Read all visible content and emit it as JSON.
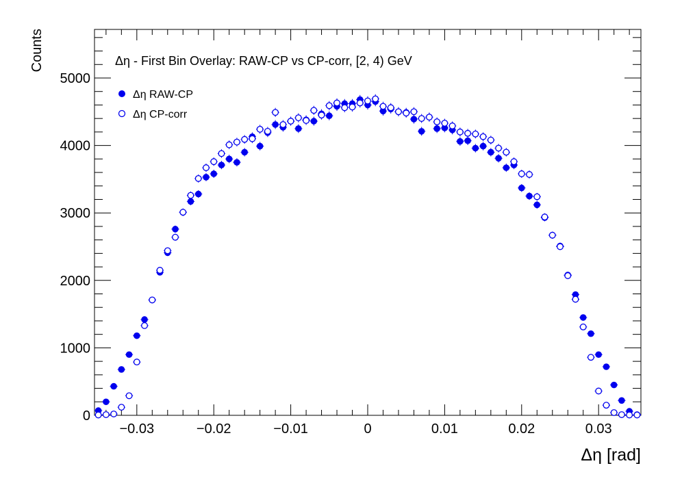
{
  "chart_data": {
    "type": "scatter",
    "title": "Δη  -  First Bin Overlay: RAW-CP vs CP-corr, [2, 4) GeV",
    "xlabel": "Δη  [rad]",
    "ylabel": "Counts",
    "xlim": [
      -0.0355,
      0.0355
    ],
    "ylim": [
      0,
      5720
    ],
    "x_ticks": [
      -0.03,
      -0.02,
      -0.01,
      0,
      0.01,
      0.02,
      0.03
    ],
    "x_tick_labels": [
      "−0.03",
      "−0.02",
      "−0.01",
      "0",
      "0.01",
      "0.02",
      "0.03"
    ],
    "y_ticks": [
      0,
      1000,
      2000,
      3000,
      4000,
      5000
    ],
    "y_tick_labels": [
      "0",
      "1000",
      "2000",
      "3000",
      "4000",
      "5000"
    ],
    "bin_width": 0.001,
    "grid": false,
    "legend_position": "top-left",
    "series": [
      {
        "name": "Δη RAW-CP",
        "marker": "filled-circle",
        "color": "#0000ee",
        "x": [
          -0.035,
          -0.034,
          -0.033,
          -0.032,
          -0.031,
          -0.03,
          -0.029,
          -0.028,
          -0.027,
          -0.026,
          -0.025,
          -0.024,
          -0.023,
          -0.022,
          -0.021,
          -0.02,
          -0.019,
          -0.018,
          -0.017,
          -0.016,
          -0.015,
          -0.014,
          -0.013,
          -0.012,
          -0.011,
          -0.01,
          -0.009,
          -0.008,
          -0.007,
          -0.006,
          -0.005,
          -0.004,
          -0.003,
          -0.002,
          -0.001,
          0.0,
          0.001,
          0.002,
          0.003,
          0.004,
          0.005,
          0.006,
          0.007,
          0.008,
          0.009,
          0.01,
          0.011,
          0.012,
          0.013,
          0.014,
          0.015,
          0.016,
          0.017,
          0.018,
          0.019,
          0.02,
          0.021,
          0.022,
          0.023,
          0.024,
          0.025,
          0.026,
          0.027,
          0.028,
          0.029,
          0.03,
          0.031,
          0.032,
          0.033,
          0.034,
          0.035
        ],
        "y": [
          70,
          200,
          430,
          680,
          900,
          1180,
          1420,
          1710,
          2120,
          2410,
          2760,
          3010,
          3170,
          3280,
          3530,
          3580,
          3710,
          3800,
          3750,
          3900,
          4130,
          3990,
          4190,
          4310,
          4270,
          4360,
          4250,
          4380,
          4360,
          4470,
          4440,
          4580,
          4620,
          4620,
          4680,
          4600,
          4650,
          4510,
          4540,
          4500,
          4490,
          4390,
          4210,
          4420,
          4250,
          4260,
          4230,
          4060,
          4070,
          3960,
          3990,
          3900,
          3810,
          3670,
          3710,
          3370,
          3250,
          3120,
          2930,
          2670,
          2510,
          2080,
          1790,
          1450,
          1210,
          900,
          720,
          450,
          220,
          60,
          10
        ],
        "yerr": [
          12,
          15,
          20,
          26,
          30,
          34,
          38,
          41,
          46,
          49,
          52,
          55,
          56,
          57,
          59,
          60,
          61,
          62,
          61,
          62,
          64,
          63,
          65,
          66,
          65,
          66,
          65,
          66,
          66,
          67,
          66,
          68,
          68,
          68,
          68,
          68,
          68,
          67,
          67,
          67,
          67,
          66,
          65,
          66,
          65,
          65,
          65,
          64,
          64,
          63,
          63,
          62,
          62,
          61,
          61,
          58,
          57,
          56,
          54,
          52,
          50,
          46,
          42,
          38,
          35,
          30,
          27,
          21,
          15,
          10,
          5
        ]
      },
      {
        "name": "Δη CP-corr",
        "marker": "open-circle",
        "color": "#0000ee",
        "x": [
          -0.035,
          -0.034,
          -0.033,
          -0.032,
          -0.031,
          -0.03,
          -0.029,
          -0.028,
          -0.027,
          -0.026,
          -0.025,
          -0.024,
          -0.023,
          -0.022,
          -0.021,
          -0.02,
          -0.019,
          -0.018,
          -0.017,
          -0.016,
          -0.015,
          -0.014,
          -0.013,
          -0.012,
          -0.011,
          -0.01,
          -0.009,
          -0.008,
          -0.007,
          -0.006,
          -0.005,
          -0.004,
          -0.003,
          -0.002,
          -0.001,
          0.0,
          0.001,
          0.002,
          0.003,
          0.004,
          0.005,
          0.006,
          0.007,
          0.008,
          0.009,
          0.01,
          0.011,
          0.012,
          0.013,
          0.014,
          0.015,
          0.016,
          0.017,
          0.018,
          0.019,
          0.02,
          0.021,
          0.022,
          0.023,
          0.024,
          0.025,
          0.026,
          0.027,
          0.028,
          0.029,
          0.03,
          0.031,
          0.032,
          0.033,
          0.034,
          0.035
        ],
        "y": [
          5,
          10,
          20,
          120,
          290,
          790,
          1330,
          1710,
          2150,
          2440,
          2640,
          3010,
          3260,
          3510,
          3670,
          3760,
          3880,
          4010,
          4050,
          4090,
          4100,
          4240,
          4210,
          4490,
          4310,
          4360,
          4410,
          4370,
          4520,
          4450,
          4590,
          4630,
          4560,
          4570,
          4630,
          4660,
          4690,
          4580,
          4560,
          4500,
          4480,
          4500,
          4400,
          4420,
          4350,
          4330,
          4290,
          4200,
          4180,
          4170,
          4130,
          4080,
          3960,
          3900,
          3760,
          3580,
          3570,
          3240,
          2940,
          2670,
          2500,
          2070,
          1720,
          1310,
          860,
          360,
          150,
          40,
          10,
          5,
          5
        ],
        "yerr": [
          3,
          4,
          5,
          12,
          18,
          30,
          38,
          41,
          47,
          50,
          52,
          55,
          58,
          60,
          61,
          62,
          63,
          64,
          64,
          64,
          65,
          66,
          65,
          67,
          66,
          66,
          67,
          66,
          67,
          67,
          68,
          68,
          68,
          68,
          68,
          69,
          69,
          68,
          68,
          67,
          67,
          67,
          66,
          67,
          66,
          66,
          66,
          65,
          65,
          65,
          65,
          64,
          63,
          63,
          62,
          60,
          60,
          57,
          55,
          52,
          50,
          46,
          42,
          37,
          30,
          19,
          12,
          7,
          4,
          3,
          3
        ]
      }
    ]
  }
}
